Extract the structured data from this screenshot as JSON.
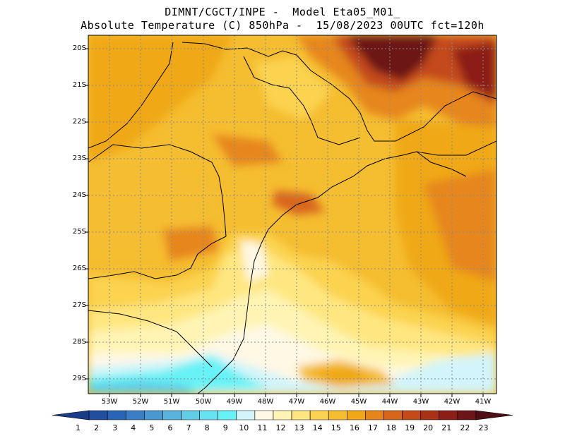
{
  "title": {
    "line1": "DIMNT/CGCT/INPE -  Model Eta05_M01_",
    "line2": "Absolute Temperature (C) 850hPa -  15/08/2023 00UTC fct=120h"
  },
  "map": {
    "lat_labels": [
      "20S",
      "21S",
      "22S",
      "23S",
      "24S",
      "25S",
      "26S",
      "27S",
      "28S",
      "29S"
    ],
    "lon_labels": [
      "53W",
      "52W",
      "51W",
      "50W",
      "49W",
      "48W",
      "47W",
      "46W",
      "45W",
      "44W",
      "43W",
      "42W",
      "41W"
    ]
  },
  "colorbar": {
    "labels": [
      "1",
      "2",
      "3",
      "4",
      "5",
      "6",
      "7",
      "8",
      "9",
      "10",
      "11",
      "12",
      "13",
      "14",
      "15",
      "16",
      "17",
      "18",
      "19",
      "20",
      "21",
      "22",
      "23"
    ],
    "colors": [
      "#1a3a8a",
      "#224ea0",
      "#2a64b4",
      "#3a7fc6",
      "#4a98d2",
      "#58b4dc",
      "#62cde6",
      "#66e2f0",
      "#66f2f6",
      "#d2f4fa",
      "#fff8e4",
      "#fff4b4",
      "#ffe680",
      "#fbd350",
      "#f5bd30",
      "#f0a818",
      "#e6861a",
      "#d8661a",
      "#c44a1a",
      "#a83218",
      "#8c1e18",
      "#6c1418",
      "#4e1014"
    ]
  }
}
